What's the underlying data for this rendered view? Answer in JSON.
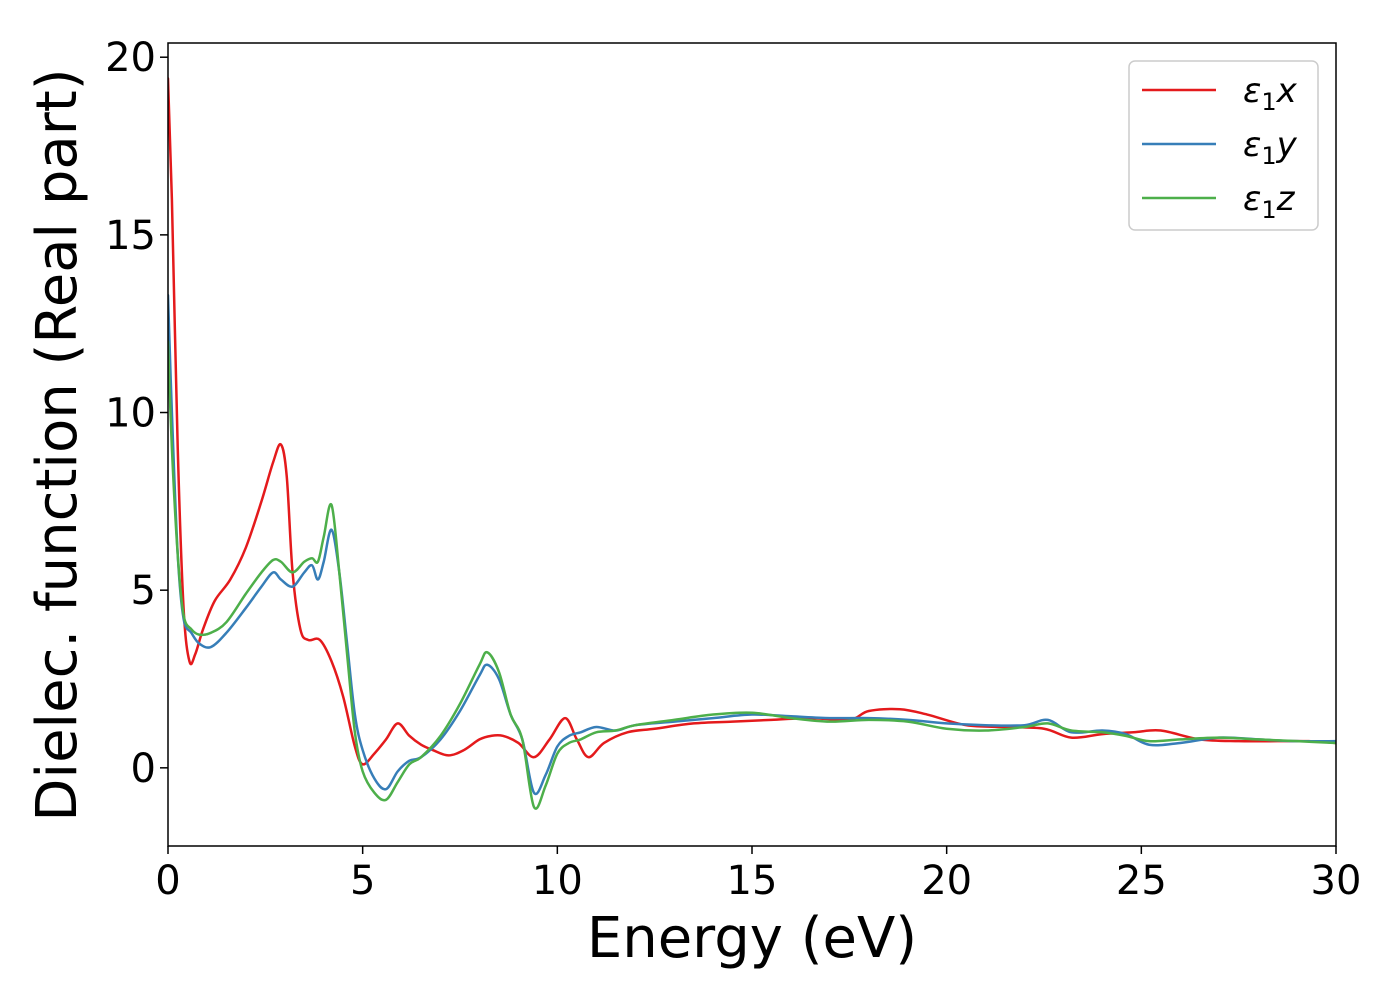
{
  "chart_data": {
    "type": "line",
    "title": "",
    "xlabel": "Energy (eV)",
    "ylabel": "Dielec. function (Real part)",
    "xlim": [
      0,
      30
    ],
    "ylim": [
      -2.2,
      20.4
    ],
    "xticks": [
      0,
      5,
      10,
      15,
      20,
      25,
      30
    ],
    "yticks": [
      0,
      5,
      10,
      15,
      20
    ],
    "grid": false,
    "legend_position": "top-right",
    "series": [
      {
        "name": "ε₁x",
        "legend_base": "ε",
        "legend_sub": "1",
        "legend_var": "x",
        "color": "#e41a1c",
        "x": [
          0,
          0.1,
          0.25,
          0.4,
          0.55,
          0.7,
          0.9,
          1.2,
          1.6,
          2.0,
          2.4,
          2.7,
          2.9,
          3.05,
          3.2,
          3.4,
          3.6,
          3.9,
          4.2,
          4.5,
          4.8,
          5.0,
          5.3,
          5.6,
          5.9,
          6.2,
          6.5,
          6.8,
          7.2,
          7.6,
          8.0,
          8.3,
          8.6,
          9.0,
          9.4,
          9.8,
          10.2,
          10.5,
          10.8,
          11.2,
          11.8,
          12.5,
          13.5,
          14.5,
          15.5,
          16.5,
          17.5,
          18.0,
          18.8,
          19.5,
          20.5,
          21.5,
          22.5,
          23.2,
          24.0,
          24.8,
          25.5,
          26.5,
          27.5,
          28.5,
          29.3,
          30
        ],
        "y": [
          19.4,
          16.0,
          9.0,
          4.5,
          3.0,
          3.2,
          3.9,
          4.7,
          5.3,
          6.2,
          7.5,
          8.6,
          9.1,
          8.2,
          5.5,
          3.9,
          3.6,
          3.6,
          3.0,
          2.0,
          0.6,
          0.1,
          0.4,
          0.8,
          1.25,
          0.9,
          0.65,
          0.5,
          0.35,
          0.5,
          0.8,
          0.9,
          0.9,
          0.7,
          0.3,
          0.8,
          1.4,
          0.8,
          0.3,
          0.7,
          1.0,
          1.1,
          1.25,
          1.3,
          1.35,
          1.4,
          1.35,
          1.6,
          1.65,
          1.5,
          1.2,
          1.15,
          1.1,
          0.85,
          0.95,
          1.0,
          1.05,
          0.8,
          0.75,
          0.75,
          0.75,
          0.7
        ]
      },
      {
        "name": "ε₁y",
        "legend_base": "ε",
        "legend_sub": "1",
        "legend_var": "y",
        "color": "#377eb8",
        "x": [
          0,
          0.1,
          0.25,
          0.4,
          0.6,
          0.8,
          1.1,
          1.5,
          2.0,
          2.4,
          2.7,
          2.9,
          3.2,
          3.5,
          3.7,
          3.85,
          4.0,
          4.2,
          4.4,
          4.6,
          4.8,
          5.0,
          5.3,
          5.6,
          5.9,
          6.2,
          6.5,
          7.0,
          7.5,
          8.0,
          8.2,
          8.5,
          8.8,
          9.1,
          9.4,
          9.7,
          10.0,
          10.3,
          10.6,
          11.0,
          11.5,
          12.0,
          13.0,
          14.0,
          15.0,
          16.0,
          17.0,
          18.0,
          19.0,
          20.0,
          21.0,
          22.0,
          22.6,
          23.2,
          24.0,
          24.6,
          25.2,
          26.0,
          27.0,
          28.0,
          29.0,
          30
        ],
        "y": [
          13.3,
          10.0,
          6.0,
          4.2,
          3.8,
          3.5,
          3.4,
          3.8,
          4.5,
          5.1,
          5.5,
          5.3,
          5.1,
          5.5,
          5.7,
          5.3,
          5.8,
          6.7,
          5.5,
          3.5,
          1.5,
          0.5,
          -0.3,
          -0.6,
          -0.1,
          0.2,
          0.3,
          0.8,
          1.6,
          2.6,
          2.9,
          2.5,
          1.5,
          0.8,
          -0.7,
          -0.2,
          0.6,
          0.9,
          1.0,
          1.15,
          1.05,
          1.2,
          1.3,
          1.4,
          1.5,
          1.45,
          1.4,
          1.4,
          1.35,
          1.25,
          1.2,
          1.2,
          1.35,
          1.0,
          1.05,
          0.95,
          0.65,
          0.7,
          0.85,
          0.8,
          0.75,
          0.75
        ]
      },
      {
        "name": "ε₁z",
        "legend_base": "ε",
        "legend_sub": "1",
        "legend_var": "z",
        "color": "#4daf4a",
        "x": [
          0,
          0.1,
          0.25,
          0.4,
          0.6,
          0.8,
          1.1,
          1.5,
          2.0,
          2.4,
          2.7,
          2.9,
          3.2,
          3.5,
          3.7,
          3.85,
          4.0,
          4.2,
          4.4,
          4.6,
          4.8,
          5.0,
          5.3,
          5.6,
          5.9,
          6.2,
          6.5,
          7.0,
          7.5,
          8.0,
          8.2,
          8.5,
          8.8,
          9.1,
          9.4,
          9.7,
          10.0,
          10.3,
          10.6,
          11.0,
          11.5,
          12.0,
          13.0,
          14.0,
          15.0,
          16.0,
          17.0,
          18.0,
          19.0,
          20.0,
          21.0,
          22.0,
          22.6,
          23.2,
          24.0,
          24.6,
          25.2,
          26.0,
          27.0,
          28.0,
          29.0,
          30
        ],
        "y": [
          12.0,
          9.0,
          6.0,
          4.3,
          3.9,
          3.75,
          3.8,
          4.1,
          4.9,
          5.5,
          5.85,
          5.8,
          5.5,
          5.8,
          5.9,
          5.8,
          6.5,
          7.4,
          5.5,
          3.2,
          1.0,
          -0.1,
          -0.7,
          -0.9,
          -0.4,
          0.1,
          0.3,
          0.9,
          1.8,
          2.9,
          3.25,
          2.7,
          1.5,
          0.8,
          -1.1,
          -0.5,
          0.4,
          0.7,
          0.8,
          1.0,
          1.05,
          1.2,
          1.35,
          1.5,
          1.55,
          1.4,
          1.3,
          1.35,
          1.3,
          1.1,
          1.05,
          1.15,
          1.25,
          1.05,
          1.0,
          0.9,
          0.75,
          0.8,
          0.85,
          0.8,
          0.75,
          0.7
        ]
      }
    ]
  }
}
